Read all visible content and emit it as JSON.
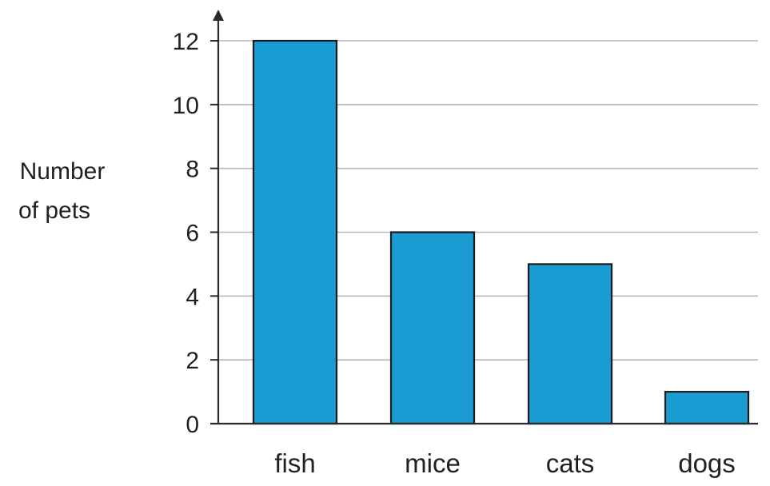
{
  "chart_data": {
    "type": "bar",
    "title": "",
    "xlabel": "",
    "ylabel": [
      "Number",
      "of pets"
    ],
    "categories": [
      "fish",
      "mice",
      "cats",
      "dogs"
    ],
    "values": [
      12,
      6,
      5,
      1
    ],
    "ylim": [
      0,
      12
    ],
    "yticks": [
      "0",
      "2",
      "4",
      "6",
      "8",
      "10",
      "12"
    ],
    "grid": true,
    "legend": "none",
    "colors": {
      "bar": "#1a9bd1",
      "bar_outline": "#1b1b1b",
      "grid": "#b8b8b8",
      "axis": "#2a2a2a"
    }
  }
}
